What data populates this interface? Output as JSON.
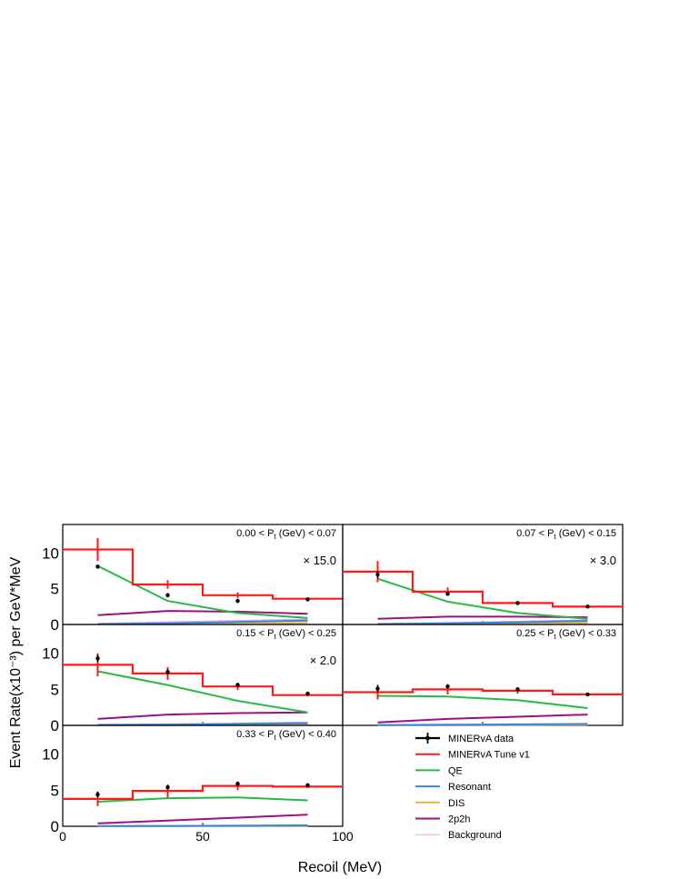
{
  "figure": {
    "ylabel": "Event Rate(x10⁻³) per GeV*MeV",
    "xlabel": "Recoil (MeV)"
  },
  "colors": {
    "data": "#000000",
    "tune": "#ff1a1a",
    "qe": "#22bb44",
    "resonant": "#3388dd",
    "dis": "#f0b040",
    "twop2h": "#a0107a",
    "background": "#e8a0e8"
  },
  "legend": [
    {
      "key": "data",
      "label": "MINERvA data",
      "style": "errorbar"
    },
    {
      "key": "tune",
      "label": "MINERvA Tune v1",
      "style": "line"
    },
    {
      "key": "qe",
      "label": "QE",
      "style": "line"
    },
    {
      "key": "resonant",
      "label": "Resonant",
      "style": "line"
    },
    {
      "key": "dis",
      "label": "DIS",
      "style": "line"
    },
    {
      "key": "twop2h",
      "label": "2p2h",
      "style": "line"
    },
    {
      "key": "background",
      "label": "Background",
      "style": "line"
    }
  ],
  "chart_data": [
    {
      "type": "line",
      "label": "0.00 < P_t (GeV) < 0.07",
      "scale": "× 15.0",
      "xlim": [
        0,
        100
      ],
      "ylim": [
        0,
        14
      ],
      "yticks": [
        "0",
        "5",
        "10"
      ],
      "xticks": [],
      "bin_edges": [
        0,
        25,
        50,
        75,
        100
      ],
      "x": [
        12.5,
        37.5,
        62.5,
        87.5
      ],
      "data": {
        "values": [
          8.1,
          4.1,
          3.3,
          3.5
        ],
        "errors": [
          0.3,
          0.3,
          0.3,
          0.2
        ]
      },
      "tune": {
        "values": [
          10.5,
          5.6,
          4.1,
          3.6
        ],
        "errors": [
          1.6,
          0.6,
          0.4,
          0.2
        ]
      },
      "qe": [
        8.2,
        3.3,
        1.6,
        0.9
      ],
      "resonant": [
        0.05,
        0.15,
        0.35,
        0.55
      ],
      "dis": [
        0.02,
        0.05,
        0.1,
        0.2
      ],
      "twop2h": [
        1.3,
        1.9,
        1.8,
        1.5
      ],
      "background": [
        0.1,
        0.3,
        0.5,
        0.7
      ]
    },
    {
      "type": "line",
      "label": "0.07 < P_t (GeV) < 0.15",
      "scale": "× 3.0",
      "xlim": [
        0,
        100
      ],
      "ylim": [
        0,
        14
      ],
      "yticks": [],
      "xticks": [],
      "bin_edges": [
        0,
        25,
        50,
        75,
        100
      ],
      "x": [
        12.5,
        37.5,
        62.5,
        87.5
      ],
      "data": {
        "values": [
          7.0,
          4.3,
          3.0,
          2.5
        ],
        "errors": [
          0.5,
          0.3,
          0.2,
          0.1
        ]
      },
      "tune": {
        "values": [
          7.4,
          4.6,
          3.0,
          2.5
        ],
        "errors": [
          1.5,
          0.6,
          0.3,
          0.1
        ]
      },
      "qe": [
        6.4,
        3.2,
        1.6,
        0.8
      ],
      "resonant": [
        0.05,
        0.15,
        0.3,
        0.5
      ],
      "dis": [
        0.02,
        0.05,
        0.1,
        0.2
      ],
      "twop2h": [
        0.8,
        1.1,
        1.1,
        1.0
      ],
      "background": [
        0.1,
        0.2,
        0.4,
        0.6
      ]
    },
    {
      "type": "line",
      "label": "0.15 < P_t (GeV) < 0.25",
      "scale": "× 2.0",
      "xlim": [
        0,
        100
      ],
      "ylim": [
        0,
        14
      ],
      "yticks": [
        "0",
        "5",
        "10"
      ],
      "xticks": [],
      "bin_edges": [
        0,
        25,
        50,
        75,
        100
      ],
      "x": [
        12.5,
        37.5,
        62.5,
        87.5
      ],
      "data": {
        "values": [
          9.3,
          7.4,
          5.6,
          4.4
        ],
        "errors": [
          0.5,
          0.4,
          0.3,
          0.2
        ]
      },
      "tune": {
        "values": [
          8.4,
          7.2,
          5.4,
          4.2
        ],
        "errors": [
          1.6,
          0.9,
          0.5,
          0.2
        ]
      },
      "qe": [
        7.5,
        5.6,
        3.4,
        1.8
      ],
      "resonant": [
        0.05,
        0.1,
        0.2,
        0.3
      ],
      "dis": [
        0.02,
        0.05,
        0.08,
        0.15
      ],
      "twop2h": [
        0.9,
        1.5,
        1.7,
        1.8
      ],
      "background": [
        0.1,
        0.15,
        0.25,
        0.4
      ]
    },
    {
      "type": "line",
      "label": "0.25 < P_t (GeV) < 0.33",
      "scale": "",
      "xlim": [
        0,
        100
      ],
      "ylim": [
        0,
        14
      ],
      "yticks": [],
      "xticks": [],
      "bin_edges": [
        0,
        25,
        50,
        75,
        100
      ],
      "x": [
        12.5,
        37.5,
        62.5,
        87.5
      ],
      "data": {
        "values": [
          5.1,
          5.4,
          5.0,
          4.3
        ],
        "errors": [
          0.5,
          0.3,
          0.3,
          0.2
        ]
      },
      "tune": {
        "values": [
          4.6,
          5.0,
          4.8,
          4.3
        ],
        "errors": [
          1.0,
          0.7,
          0.4,
          0.1
        ]
      },
      "qe": [
        4.1,
        4.0,
        3.5,
        2.4
      ],
      "resonant": [
        0.05,
        0.08,
        0.12,
        0.2
      ],
      "dis": [
        0.02,
        0.04,
        0.06,
        0.1
      ],
      "twop2h": [
        0.4,
        0.9,
        1.2,
        1.5
      ],
      "background": [
        0.05,
        0.1,
        0.15,
        0.2
      ]
    },
    {
      "type": "line",
      "label": "0.33 < P_t (GeV) < 0.40",
      "scale": "",
      "xlim": [
        0,
        100
      ],
      "ylim": [
        0,
        14
      ],
      "yticks": [
        "0",
        "5",
        "10"
      ],
      "xticks": [
        "0",
        "50",
        "100"
      ],
      "bin_edges": [
        0,
        25,
        50,
        75,
        100
      ],
      "x": [
        12.5,
        37.5,
        62.5,
        87.5
      ],
      "data": {
        "values": [
          4.4,
          5.4,
          5.9,
          5.7
        ],
        "errors": [
          0.4,
          0.3,
          0.3,
          0.2
        ]
      },
      "tune": {
        "values": [
          3.8,
          4.9,
          5.6,
          5.5
        ],
        "errors": [
          1.0,
          0.9,
          0.6,
          0.2
        ]
      },
      "qe": [
        3.4,
        3.9,
        4.0,
        3.6
      ],
      "resonant": [
        0.03,
        0.05,
        0.08,
        0.12
      ],
      "dis": [
        0.01,
        0.03,
        0.05,
        0.08
      ],
      "twop2h": [
        0.4,
        0.8,
        1.2,
        1.6
      ],
      "background": [
        0.03,
        0.05,
        0.08,
        0.1
      ]
    }
  ]
}
